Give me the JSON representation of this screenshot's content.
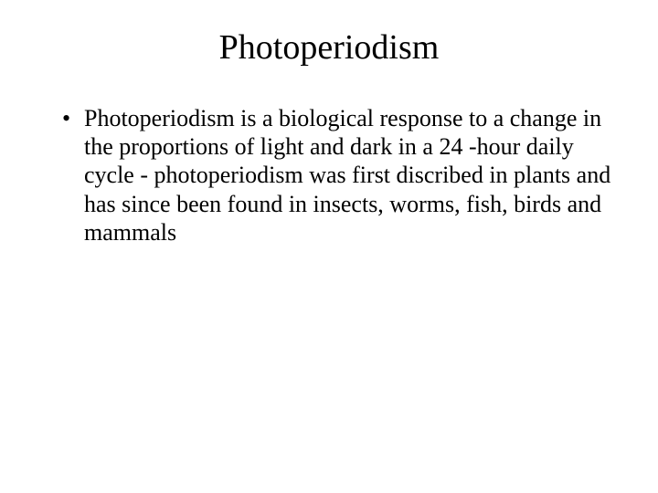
{
  "slide": {
    "title": "Photoperiodism",
    "bullets": [
      "Photoperiodism is a biological response to a change in the proportions of light and dark in a 24 -hour daily cycle - photoperiodism was first discribed in plants and has since been found in insects, worms, fish, birds and mammals"
    ]
  },
  "style": {
    "background_color": "#ffffff",
    "text_color": "#000000",
    "title_fontsize": 38,
    "body_fontsize": 26,
    "font_family": "Times New Roman"
  }
}
